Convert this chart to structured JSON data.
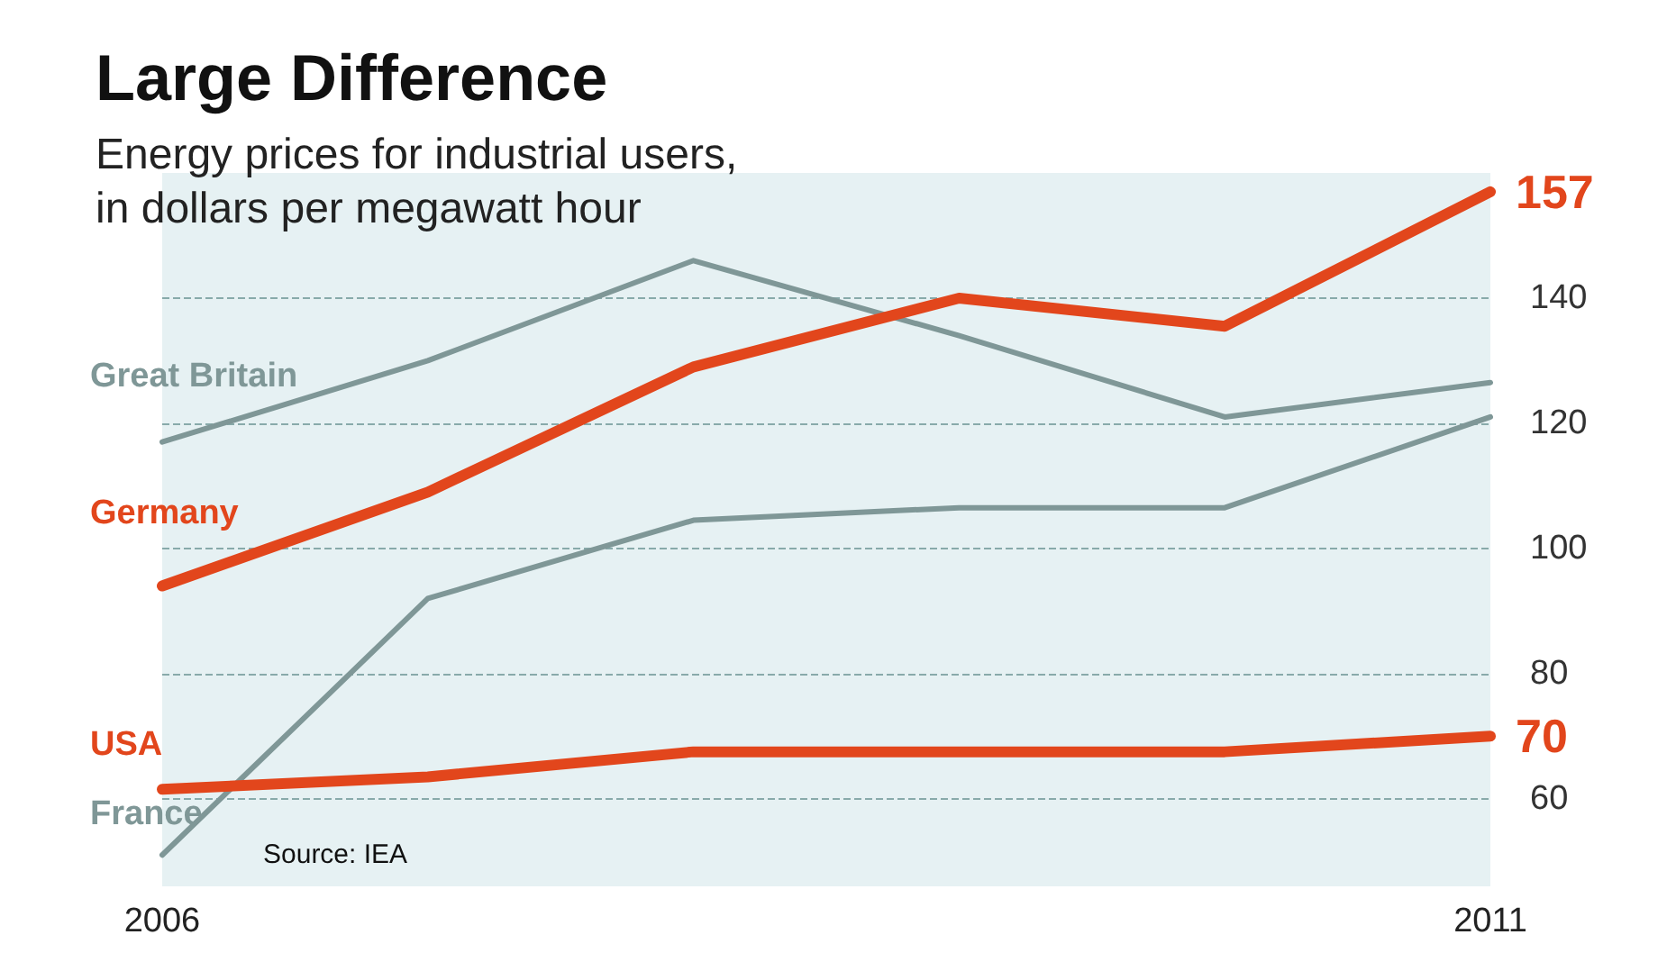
{
  "chart_data": {
    "type": "line",
    "title": "Large Difference",
    "subtitle": "Energy prices for industrial users,\nin dollars per megawatt hour",
    "x": [
      2006,
      2007,
      2008,
      2009,
      2010,
      2011
    ],
    "xlim": [
      2006,
      2011
    ],
    "xticks": [
      2006,
      2011
    ],
    "ylim": [
      46,
      160
    ],
    "yticks": [
      60,
      80,
      100,
      120,
      140
    ],
    "grid": "y",
    "marker": "none",
    "line_style": "solid",
    "annotations": [
      "Source: IEA"
    ],
    "series": [
      {
        "name": "Great Britain",
        "color": "#7f9797",
        "values": [
          117,
          130,
          146,
          134,
          121,
          126.5
        ]
      },
      {
        "name": "Germany",
        "color": "#e2461c",
        "values": [
          94,
          109,
          129,
          140,
          135.5,
          157
        ],
        "value_labels": [
          null,
          null,
          null,
          null,
          null,
          "157"
        ]
      },
      {
        "name": "France",
        "color": "#7f9797",
        "values": [
          51,
          92,
          104.5,
          106.5,
          106.5,
          121
        ]
      },
      {
        "name": "USA",
        "color": "#e2461c",
        "values": [
          61.5,
          63.5,
          67.5,
          67.5,
          67.5,
          70
        ],
        "value_labels": [
          null,
          null,
          null,
          null,
          null,
          "70"
        ]
      }
    ]
  }
}
